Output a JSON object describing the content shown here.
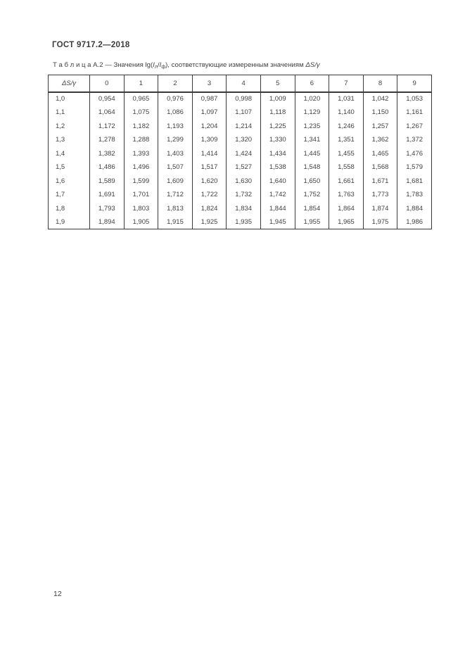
{
  "page": {
    "header": "ГОСТ 9717.2—2018",
    "page_number": "12"
  },
  "caption": {
    "label": "Т а б л и ц а  А.2 — Значения lg(",
    "i1": "I",
    "sub1": "л",
    "slash": "/",
    "i2": "I",
    "sub2": "ф",
    "after": "), соответствующие измеренным значениям ",
    "delta": "ΔS/γ"
  },
  "table": {
    "corner_header": "ΔS/γ",
    "col_headers": [
      "0",
      "1",
      "2",
      "3",
      "4",
      "5",
      "6",
      "7",
      "8",
      "9"
    ],
    "rows": [
      {
        "label": "1,0",
        "values": [
          "0,954",
          "0,965",
          "0,976",
          "0,987",
          "0,998",
          "1,009",
          "1,020",
          "1,031",
          "1,042",
          "1,053"
        ]
      },
      {
        "label": "1,1",
        "values": [
          "1,064",
          "1,075",
          "1,086",
          "1,097",
          "1,107",
          "1,118",
          "1,129",
          "1,140",
          "1,150",
          "1,161"
        ]
      },
      {
        "label": "1,2",
        "values": [
          "1,172",
          "1,182",
          "1,193",
          "1,204",
          "1,214",
          "1,225",
          "1,235",
          "1,246",
          "1,257",
          "1,267"
        ]
      },
      {
        "label": "1,3",
        "values": [
          "1,278",
          "1,288",
          "1,299",
          "1,309",
          "1,320",
          "1,330",
          "1,341",
          "1,351",
          "1,362",
          "1,372"
        ]
      },
      {
        "label": "1,4",
        "values": [
          "1,382",
          "1,393",
          "1,403",
          "1,414",
          "1,424",
          "1,434",
          "1,445",
          "1,455",
          "1,465",
          "1,476"
        ]
      },
      {
        "label": "1,5",
        "values": [
          "1,486",
          "1,496",
          "1,507",
          "1,517",
          "1,527",
          "1,538",
          "1,548",
          "1,558",
          "1,568",
          "1,579"
        ]
      },
      {
        "label": "1,6",
        "values": [
          "1,589",
          "1,599",
          "1,609",
          "1,620",
          "1,630",
          "1,640",
          "1,650",
          "1,661",
          "1,671",
          "1,681"
        ]
      },
      {
        "label": "1,7",
        "values": [
          "1,691",
          "1,701",
          "1,712",
          "1,722",
          "1,732",
          "1,742",
          "1,752",
          "1,763",
          "1,773",
          "1,783"
        ]
      },
      {
        "label": "1,8",
        "values": [
          "1,793",
          "1,803",
          "1,813",
          "1,824",
          "1,834",
          "1,844",
          "1,854",
          "1,864",
          "1,874",
          "1,884"
        ]
      },
      {
        "label": "1,9",
        "values": [
          "1,894",
          "1,905",
          "1,915",
          "1,925",
          "1,935",
          "1,945",
          "1,955",
          "1,965",
          "1,975",
          "1,986"
        ]
      }
    ]
  },
  "colors": {
    "text": "#3d3d3d",
    "border": "#3a3a3a",
    "background": "#ffffff"
  }
}
